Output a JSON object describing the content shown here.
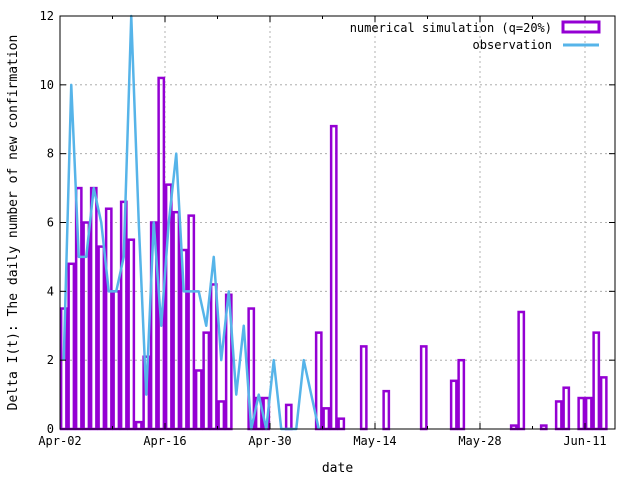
{
  "chart_data": {
    "type": "bar",
    "xlabel": "date",
    "ylabel": "Delta I(t): The daily number of new confirmation",
    "x_tick_labels": [
      "Apr-02",
      "Apr-16",
      "Apr-30",
      "May-14",
      "May-28",
      "Jun-11"
    ],
    "x_tick_days": [
      0,
      14,
      28,
      42,
      56,
      70
    ],
    "xlim": [
      0,
      74
    ],
    "ylim": [
      0,
      12
    ],
    "y_ticks": [
      0,
      2,
      4,
      6,
      8,
      10,
      12
    ],
    "grid": true,
    "legend_position": "top-right",
    "colors": {
      "simulation": "#9400D3",
      "observation": "#56B4E9"
    },
    "series": [
      {
        "name": "numerical simulation (q=20%)",
        "style": "outlined-bars",
        "x": [
          0,
          1,
          2,
          3,
          4,
          5,
          6,
          7,
          8,
          9,
          10,
          11,
          12,
          13,
          14,
          15,
          16,
          17,
          18,
          19,
          20,
          21,
          22,
          23,
          24,
          25,
          26,
          27,
          28,
          29,
          30,
          31,
          32,
          33,
          34,
          35,
          36,
          37,
          38,
          39,
          40,
          41,
          42,
          43,
          44,
          45,
          46,
          47,
          48,
          49,
          50,
          51,
          52,
          53,
          54,
          55,
          56,
          57,
          58,
          59,
          60,
          61,
          62,
          63,
          64,
          65,
          66,
          67,
          68,
          69,
          70,
          71,
          72,
          73
        ],
        "values": [
          3.5,
          4.8,
          7.0,
          6.0,
          7.0,
          5.3,
          6.4,
          4.0,
          6.6,
          5.5,
          0.2,
          2.1,
          6.0,
          10.2,
          7.1,
          6.3,
          5.2,
          6.2,
          1.7,
          2.8,
          4.2,
          0.8,
          3.9,
          0,
          0,
          3.5,
          0.9,
          0.9,
          0,
          0,
          0.7,
          0,
          0,
          0,
          2.8,
          0.6,
          8.8,
          0.3,
          0,
          0,
          2.4,
          0,
          0,
          1.1,
          0,
          0,
          0,
          0,
          2.4,
          0,
          0,
          0,
          1.4,
          2.0,
          0,
          0,
          0,
          0,
          0,
          0,
          0.1,
          3.4,
          0,
          0,
          0.1,
          0,
          0.8,
          1.2,
          0,
          0.9,
          0.9,
          2.8,
          1.5,
          0
        ]
      },
      {
        "name": "observation",
        "style": "line",
        "x": [
          0,
          1,
          2,
          3,
          4,
          5,
          6,
          7,
          8,
          9,
          10,
          11,
          12,
          13,
          14,
          15,
          16,
          17,
          18,
          19,
          20,
          21,
          22,
          23,
          24,
          25,
          26,
          27,
          28,
          29,
          30,
          31,
          32,
          33,
          34
        ],
        "values": [
          2,
          10,
          5,
          5,
          7,
          6,
          4,
          4,
          5,
          12,
          6,
          1,
          6,
          3,
          6,
          8,
          4,
          4,
          4,
          3,
          5,
          2,
          4,
          1,
          3,
          0,
          1,
          0,
          2,
          0,
          0,
          0,
          2,
          1,
          0
        ]
      }
    ]
  }
}
